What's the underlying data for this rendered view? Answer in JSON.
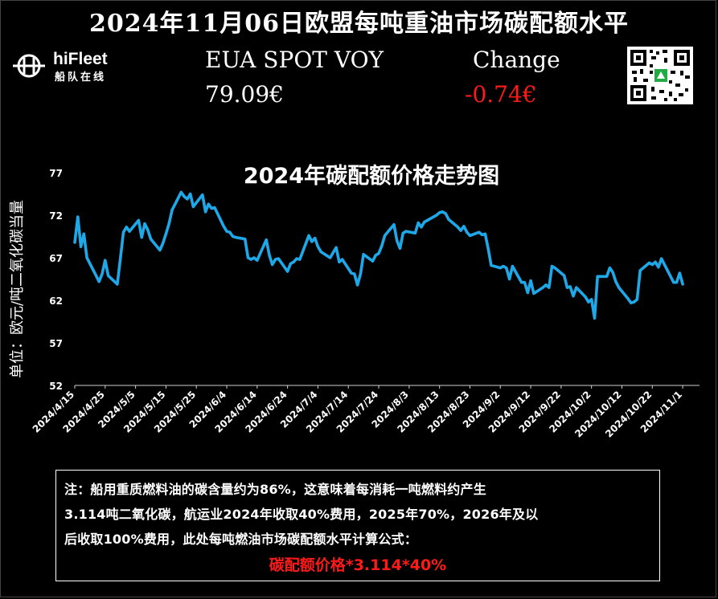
{
  "header": {
    "title": "2024年11月06日欧盟每吨重油市场碳配额水平",
    "brand": "hiFleet",
    "brand_cn": "船队在线",
    "eua_label": "EUA SPOT VOY",
    "eua_value": "79.09€",
    "change_label": "Change",
    "change_value": "-0.74€"
  },
  "colors": {
    "background": "#000000",
    "line": "#1fa8e8",
    "negative": "#ff1a1a",
    "text": "#ffffff"
  },
  "icons": {
    "logo": "hifleet-logo-icon",
    "qr": "qr-code-icon"
  },
  "chart_data": {
    "type": "line",
    "title": "2024年碳配额价格走势图",
    "xlabel": "",
    "ylabel": "单位：欧元/吨二氧化碳当量",
    "ylim": [
      52,
      77
    ],
    "yticks": [
      52,
      57,
      62,
      67,
      72,
      77
    ],
    "xlim": [
      "2024-04-15",
      "2024-11-06"
    ],
    "xticks": [
      "2024/4/15",
      "2024/4/25",
      "2024/5/5",
      "2024/5/15",
      "2024/5/25",
      "2024/6/4",
      "2024/6/14",
      "2024/6/24",
      "2024/7/4",
      "2024/7/14",
      "2024/7/24",
      "2024/8/3",
      "2024/8/13",
      "2024/8/23",
      "2024/9/2",
      "2024/9/12",
      "2024/9/22",
      "2024/10/2",
      "2024/10/12",
      "2024/10/22",
      "2024/11/1"
    ],
    "grid": false,
    "legend": "none",
    "series": [
      {
        "values": [
          [
            "2024-04-15",
            68.8
          ],
          [
            "2024-04-16",
            71.8
          ],
          [
            "2024-04-17",
            68.3
          ],
          [
            "2024-04-18",
            69.8
          ],
          [
            "2024-04-19",
            67.0
          ],
          [
            "2024-04-22",
            64.9
          ],
          [
            "2024-04-23",
            64.2
          ],
          [
            "2024-04-24",
            65.1
          ],
          [
            "2024-04-25",
            66.7
          ],
          [
            "2024-04-26",
            64.9
          ],
          [
            "2024-04-29",
            63.9
          ],
          [
            "2024-04-30",
            66.9
          ],
          [
            "2024-05-01",
            70.0
          ],
          [
            "2024-05-02",
            70.6
          ],
          [
            "2024-05-03",
            70.1
          ],
          [
            "2024-05-06",
            71.4
          ],
          [
            "2024-05-07",
            69.4
          ],
          [
            "2024-05-08",
            71.0
          ],
          [
            "2024-05-09",
            70.3
          ],
          [
            "2024-05-10",
            69.2
          ],
          [
            "2024-05-13",
            67.9
          ],
          [
            "2024-05-14",
            68.7
          ],
          [
            "2024-05-15",
            69.8
          ],
          [
            "2024-05-16",
            71.0
          ],
          [
            "2024-05-17",
            72.6
          ],
          [
            "2024-05-20",
            74.7
          ],
          [
            "2024-05-21",
            74.2
          ],
          [
            "2024-05-22",
            73.9
          ],
          [
            "2024-05-23",
            74.5
          ],
          [
            "2024-05-24",
            73.0
          ],
          [
            "2024-05-27",
            74.4
          ],
          [
            "2024-05-28",
            72.4
          ],
          [
            "2024-05-29",
            73.3
          ],
          [
            "2024-05-30",
            72.8
          ],
          [
            "2024-05-31",
            72.9
          ],
          [
            "2024-06-03",
            70.7
          ],
          [
            "2024-06-04",
            70.1
          ],
          [
            "2024-06-05",
            70.0
          ],
          [
            "2024-06-06",
            69.5
          ],
          [
            "2024-06-07",
            69.4
          ],
          [
            "2024-06-10",
            69.2
          ],
          [
            "2024-06-11",
            67.0
          ],
          [
            "2024-06-12",
            66.8
          ],
          [
            "2024-06-13",
            67.0
          ],
          [
            "2024-06-14",
            66.7
          ],
          [
            "2024-06-17",
            69.1
          ],
          [
            "2024-06-18",
            67.3
          ],
          [
            "2024-06-19",
            66.2
          ],
          [
            "2024-06-20",
            66.8
          ],
          [
            "2024-06-21",
            66.9
          ],
          [
            "2024-06-24",
            65.4
          ],
          [
            "2024-06-25",
            66.3
          ],
          [
            "2024-06-26",
            66.5
          ],
          [
            "2024-06-27",
            66.9
          ],
          [
            "2024-06-28",
            66.8
          ],
          [
            "2024-07-01",
            69.6
          ],
          [
            "2024-07-02",
            68.9
          ],
          [
            "2024-07-03",
            69.3
          ],
          [
            "2024-07-04",
            68.3
          ],
          [
            "2024-07-05",
            67.7
          ],
          [
            "2024-07-08",
            67.0
          ],
          [
            "2024-07-09",
            67.6
          ],
          [
            "2024-07-10",
            68.2
          ],
          [
            "2024-07-11",
            66.5
          ],
          [
            "2024-07-12",
            66.8
          ],
          [
            "2024-07-15",
            65.2
          ],
          [
            "2024-07-16",
            65.1
          ],
          [
            "2024-07-17",
            63.8
          ],
          [
            "2024-07-18",
            65.1
          ],
          [
            "2024-07-19",
            67.4
          ],
          [
            "2024-07-22",
            66.6
          ],
          [
            "2024-07-23",
            67.3
          ],
          [
            "2024-07-24",
            67.5
          ],
          [
            "2024-07-25",
            68.4
          ],
          [
            "2024-07-26",
            69.6
          ],
          [
            "2024-07-29",
            70.9
          ],
          [
            "2024-07-30",
            69.0
          ],
          [
            "2024-07-31",
            68.1
          ],
          [
            "2024-08-01",
            69.9
          ],
          [
            "2024-08-02",
            70.1
          ],
          [
            "2024-08-05",
            69.9
          ],
          [
            "2024-08-06",
            71.1
          ],
          [
            "2024-08-07",
            70.6
          ],
          [
            "2024-08-08",
            71.2
          ],
          [
            "2024-08-09",
            71.4
          ],
          [
            "2024-08-12",
            72.0
          ],
          [
            "2024-08-13",
            72.3
          ],
          [
            "2024-08-14",
            72.4
          ],
          [
            "2024-08-15",
            72.2
          ],
          [
            "2024-08-16",
            71.5
          ],
          [
            "2024-08-19",
            70.6
          ],
          [
            "2024-08-20",
            70.2
          ],
          [
            "2024-08-21",
            70.7
          ],
          [
            "2024-08-22",
            70.0
          ],
          [
            "2024-08-23",
            69.6
          ],
          [
            "2024-08-26",
            70.0
          ],
          [
            "2024-08-27",
            69.7
          ],
          [
            "2024-08-28",
            69.8
          ],
          [
            "2024-08-29",
            68.1
          ],
          [
            "2024-08-30",
            66.1
          ],
          [
            "2024-09-02",
            65.8
          ],
          [
            "2024-09-03",
            66.0
          ],
          [
            "2024-09-04",
            65.8
          ],
          [
            "2024-09-05",
            64.5
          ],
          [
            "2024-09-06",
            66.0
          ],
          [
            "2024-09-09",
            64.1
          ],
          [
            "2024-09-10",
            64.1
          ],
          [
            "2024-09-11",
            62.9
          ],
          [
            "2024-09-12",
            64.3
          ],
          [
            "2024-09-13",
            62.8
          ],
          [
            "2024-09-16",
            63.5
          ],
          [
            "2024-09-17",
            63.8
          ],
          [
            "2024-09-18",
            63.5
          ],
          [
            "2024-09-19",
            66.0
          ],
          [
            "2024-09-20",
            65.8
          ],
          [
            "2024-09-23",
            64.9
          ],
          [
            "2024-09-24",
            63.5
          ],
          [
            "2024-09-25",
            63.6
          ],
          [
            "2024-09-26",
            62.5
          ],
          [
            "2024-09-27",
            63.5
          ],
          [
            "2024-09-30",
            62.4
          ],
          [
            "2024-10-01",
            61.8
          ],
          [
            "2024-10-02",
            62.1
          ],
          [
            "2024-10-03",
            59.9
          ],
          [
            "2024-10-04",
            64.8
          ],
          [
            "2024-10-07",
            64.8
          ],
          [
            "2024-10-08",
            65.8
          ],
          [
            "2024-10-09",
            65.3
          ],
          [
            "2024-10-10",
            64.2
          ],
          [
            "2024-10-11",
            63.5
          ],
          [
            "2024-10-14",
            62.2
          ],
          [
            "2024-10-15",
            61.7
          ],
          [
            "2024-10-16",
            61.8
          ],
          [
            "2024-10-17",
            62.1
          ],
          [
            "2024-10-18",
            65.5
          ],
          [
            "2024-10-21",
            66.4
          ],
          [
            "2024-10-22",
            66.2
          ],
          [
            "2024-10-23",
            66.5
          ],
          [
            "2024-10-24",
            65.9
          ],
          [
            "2024-10-25",
            66.9
          ],
          [
            "2024-10-28",
            64.8
          ],
          [
            "2024-10-29",
            64.1
          ],
          [
            "2024-10-30",
            64.1
          ],
          [
            "2024-10-31",
            65.2
          ],
          [
            "2024-11-01",
            63.9
          ]
        ]
      }
    ]
  },
  "note": {
    "text_1": "注：船用重质燃料油的碳含量约为86%，这意味着每消耗一吨燃料约产生",
    "text_2": "3.114吨二氧化碳，航运业2024年收取40%费用，2025年70%，2026年及以",
    "text_3": "后收取100%费用，此处每吨燃油市场碳配额水平计算公式：",
    "formula": "碳配额价格*3.114*40%"
  }
}
